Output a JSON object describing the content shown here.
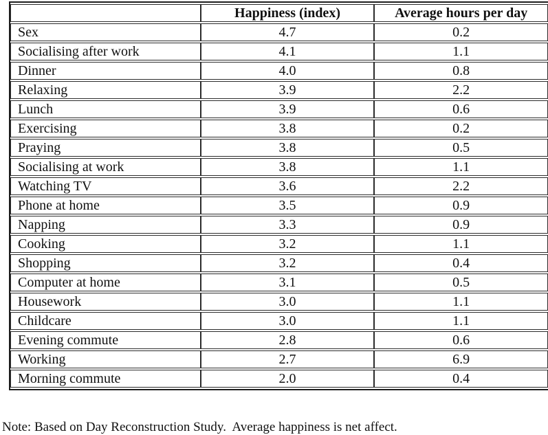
{
  "table": {
    "columns": [
      {
        "key": "activity",
        "label": ""
      },
      {
        "key": "happiness",
        "label": "Happiness (index)"
      },
      {
        "key": "hours",
        "label": "Average hours per day"
      }
    ],
    "rows": [
      {
        "activity": "Sex",
        "happiness": "4.7",
        "hours": "0.2"
      },
      {
        "activity": "Socialising after work",
        "happiness": "4.1",
        "hours": "1.1"
      },
      {
        "activity": "Dinner",
        "happiness": "4.0",
        "hours": "0.8"
      },
      {
        "activity": "Relaxing",
        "happiness": "3.9",
        "hours": "2.2"
      },
      {
        "activity": "Lunch",
        "happiness": "3.9",
        "hours": "0.6"
      },
      {
        "activity": "Exercising",
        "happiness": "3.8",
        "hours": "0.2"
      },
      {
        "activity": "Praying",
        "happiness": "3.8",
        "hours": "0.5"
      },
      {
        "activity": "Socialising at work",
        "happiness": "3.8",
        "hours": "1.1"
      },
      {
        "activity": "Watching TV",
        "happiness": "3.6",
        "hours": "2.2"
      },
      {
        "activity": "Phone at home",
        "happiness": "3.5",
        "hours": "0.9"
      },
      {
        "activity": "Napping",
        "happiness": "3.3",
        "hours": "0.9"
      },
      {
        "activity": "Cooking",
        "happiness": "3.2",
        "hours": "1.1"
      },
      {
        "activity": "Shopping",
        "happiness": "3.2",
        "hours": "0.4"
      },
      {
        "activity": "Computer at home",
        "happiness": "3.1",
        "hours": "0.5"
      },
      {
        "activity": "Housework",
        "happiness": "3.0",
        "hours": "1.1"
      },
      {
        "activity": "Childcare",
        "happiness": "3.0",
        "hours": "1.1"
      },
      {
        "activity": "Evening commute",
        "happiness": "2.8",
        "hours": "0.6"
      },
      {
        "activity": "Working",
        "happiness": "2.7",
        "hours": "6.9"
      },
      {
        "activity": "Morning commute",
        "happiness": "2.0",
        "hours": "0.4"
      }
    ]
  },
  "note": "Note: Based on Day Reconstruction Study.  Average happiness is net affect.",
  "colors": {
    "border": "#1c1c1c",
    "text": "#111111",
    "background": "#ffffff"
  }
}
